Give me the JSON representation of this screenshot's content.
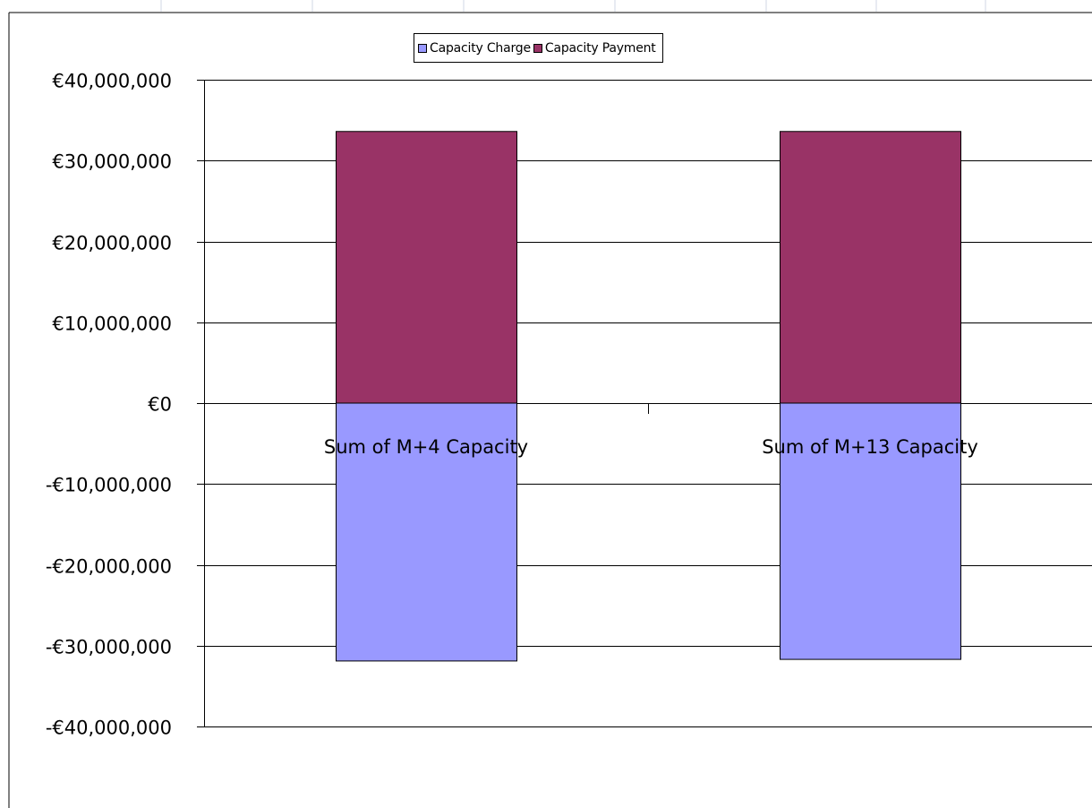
{
  "chart_data": {
    "type": "bar",
    "stacked": true,
    "categories": [
      "Sum of M+4 Capacity",
      "Sum of M+13 Capacity"
    ],
    "series": [
      {
        "name": "Capacity Charge",
        "color": "#9999ff",
        "values": [
          -31900000,
          -31700000
        ]
      },
      {
        "name": "Capacity Payment",
        "color": "#993366",
        "values": [
          33600000,
          33600000
        ]
      }
    ],
    "ylim": [
      -40000000,
      40000000
    ],
    "yticks": [
      40000000,
      30000000,
      20000000,
      10000000,
      0,
      -10000000,
      -20000000,
      -30000000,
      -40000000
    ],
    "ytick_labels": [
      "€40,000,000",
      "€30,000,000",
      "€20,000,000",
      "€10,000,000",
      "€0",
      "-€10,000,000",
      "-€20,000,000",
      "-€30,000,000",
      "-€40,000,000"
    ],
    "grid": true,
    "legend_position": "top-center",
    "title": "",
    "xlabel": "",
    "ylabel": ""
  }
}
